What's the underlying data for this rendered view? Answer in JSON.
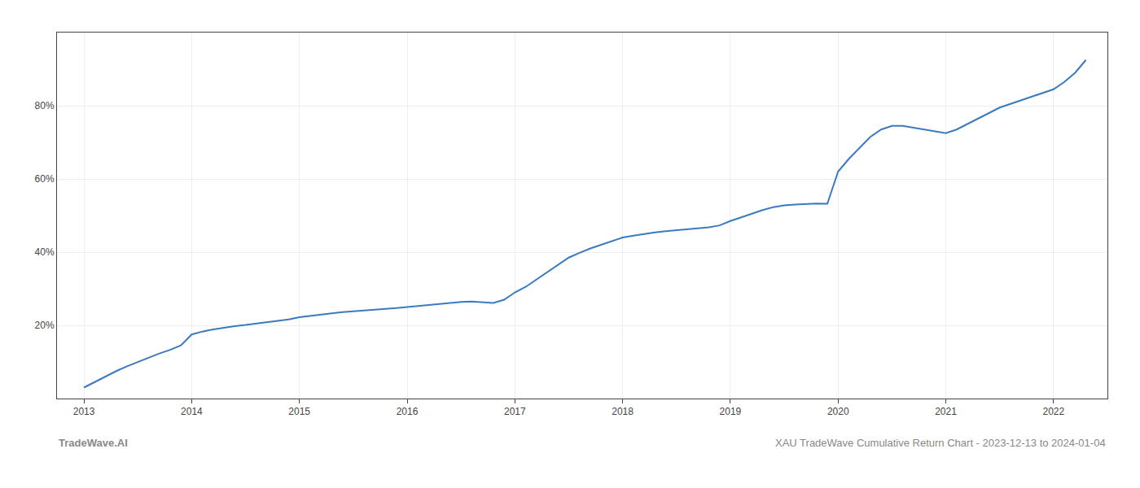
{
  "chart_data": {
    "type": "line",
    "annotations": [
      "TradeWave.AI",
      "XAU TradeWave Cumulative Return Chart - 2023-12-13 to 2024-01-04"
    ],
    "x": [
      2013.0,
      2013.1,
      2013.2,
      2013.3,
      2013.4,
      2013.5,
      2013.6,
      2013.7,
      2013.8,
      2013.9,
      2014.0,
      2014.1,
      2014.2,
      2014.3,
      2014.4,
      2014.5,
      2014.6,
      2014.7,
      2014.8,
      2014.9,
      2015.0,
      2015.1,
      2015.2,
      2015.3,
      2015.4,
      2015.5,
      2015.6,
      2015.7,
      2015.8,
      2015.9,
      2016.0,
      2016.1,
      2016.2,
      2016.3,
      2016.4,
      2016.5,
      2016.6,
      2016.7,
      2016.8,
      2016.9,
      2017.0,
      2017.1,
      2017.2,
      2017.3,
      2017.4,
      2017.5,
      2017.6,
      2017.7,
      2017.8,
      2017.9,
      2018.0,
      2018.1,
      2018.2,
      2018.3,
      2018.4,
      2018.5,
      2018.6,
      2018.7,
      2018.8,
      2018.9,
      2019.0,
      2019.1,
      2019.2,
      2019.3,
      2019.4,
      2019.5,
      2019.6,
      2019.7,
      2019.8,
      2019.9,
      2020.0,
      2020.1,
      2020.2,
      2020.3,
      2020.4,
      2020.5,
      2020.6,
      2020.7,
      2020.8,
      2020.9,
      2021.0,
      2021.1,
      2021.2,
      2021.3,
      2021.4,
      2021.5,
      2021.6,
      2021.7,
      2021.8,
      2021.9,
      2022.0,
      2022.1,
      2022.2,
      2022.3
    ],
    "values": [
      3.0,
      4.5,
      6.0,
      7.5,
      8.8,
      10.0,
      11.2,
      12.3,
      13.3,
      14.5,
      17.5,
      18.3,
      18.9,
      19.4,
      19.8,
      20.1,
      20.5,
      20.8,
      21.2,
      21.6,
      22.2,
      22.6,
      23.0,
      23.3,
      23.6,
      23.8,
      24.0,
      24.2,
      24.5,
      24.7,
      25.0,
      25.3,
      25.6,
      25.9,
      26.2,
      26.4,
      26.5,
      26.3,
      26.1,
      27.0,
      29.0,
      30.5,
      32.5,
      34.5,
      36.5,
      38.5,
      39.8,
      41.0,
      42.0,
      43.0,
      44.0,
      44.5,
      45.0,
      45.4,
      45.7,
      46.0,
      46.3,
      46.5,
      46.8,
      47.3,
      48.5,
      49.5,
      50.5,
      51.5,
      52.3,
      52.8,
      53.0,
      53.2,
      53.3,
      53.2,
      62.0,
      65.5,
      68.5,
      71.5,
      73.5,
      74.5,
      74.5,
      74.0,
      73.5,
      73.0,
      72.5,
      73.5,
      75.0,
      76.5,
      78.0,
      79.5,
      80.5,
      81.5,
      82.5,
      83.5,
      84.5,
      86.5,
      89.0,
      92.5
    ],
    "color": "#3a7abf",
    "xlim": [
      2012.75,
      2022.5
    ],
    "xticks": [
      2013,
      2014,
      2015,
      2016,
      2017,
      2018,
      2019,
      2020,
      2021,
      2022
    ],
    "ylim": [
      0,
      100
    ],
    "yticks": [
      {
        "value": 20,
        "label": "20%"
      },
      {
        "value": 40,
        "label": "40%"
      },
      {
        "value": 60,
        "label": "60%"
      },
      {
        "value": 80,
        "label": "80%"
      }
    ],
    "grid": true
  }
}
